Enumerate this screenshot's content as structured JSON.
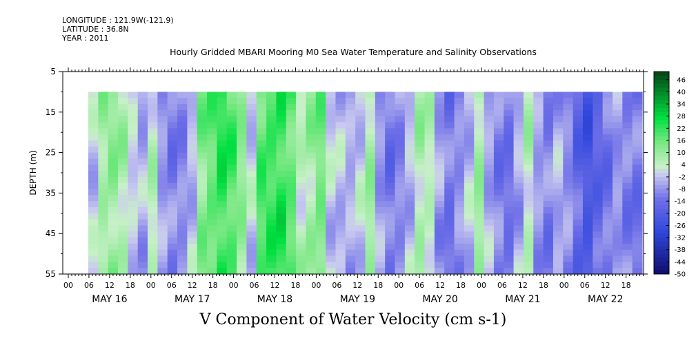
{
  "header": {
    "longitude": "LONGITUDE : 121.9W(-121.9)",
    "latitude": "LATITUDE : 36.8N",
    "year": "YEAR : 2011"
  },
  "chart_data": {
    "type": "heatmap",
    "title": "Hourly Gridded MBARI Mooring M0 Sea Water Temperature and Salinity Observations",
    "variable_label": "V Component of Water Velocity (cm s-1)",
    "ylabel": "DEPTH (m)",
    "y_ticks": [
      "5",
      "15",
      "25",
      "35",
      "45",
      "55"
    ],
    "ylim": [
      55,
      5
    ],
    "x_hour_ticks": [
      "00",
      "06",
      "12",
      "18",
      "00",
      "06",
      "12",
      "18",
      "00",
      "06",
      "12",
      "18",
      "00",
      "06",
      "12",
      "18",
      "00",
      "06",
      "12",
      "18",
      "00",
      "06",
      "12",
      "18",
      "00",
      "06",
      "12",
      "18"
    ],
    "x_day_labels": [
      "MAY 16",
      "MAY 17",
      "MAY 18",
      "MAY 19",
      "MAY 20",
      "MAY 21",
      "MAY 22"
    ],
    "colorbar_levels": [
      "46",
      "40",
      "34",
      "28",
      "22",
      "16",
      "10",
      "4",
      "-2",
      "-8",
      "-14",
      "-20",
      "-26",
      "-32",
      "-38",
      "-44",
      "-50"
    ],
    "colorbar_range": [
      -50,
      50
    ],
    "data_depth_range": [
      10,
      55
    ],
    "approx_column_values": [
      -2,
      8,
      10,
      6,
      -2,
      -6,
      4,
      -8,
      -12,
      -10,
      -4,
      12,
      16,
      22,
      18,
      10,
      -2,
      18,
      20,
      22,
      16,
      4,
      8,
      14,
      -2,
      -4,
      -6,
      -2,
      8,
      -8,
      -14,
      -10,
      -4,
      6,
      4,
      -8,
      -14,
      -10,
      -4,
      8,
      -6,
      -12,
      -14,
      -6,
      4,
      -8,
      -12,
      -6,
      -10,
      -18,
      -24,
      -18,
      -14,
      -8,
      -12,
      -14
    ],
    "colors": {
      "positive_max": "#063a12",
      "positive_mid": "#00e040",
      "neutral_pos": "#c8f0c8",
      "neutral_neg": "#c8c8f0",
      "negative_mid": "#7070e8",
      "negative_max": "#101070"
    }
  }
}
